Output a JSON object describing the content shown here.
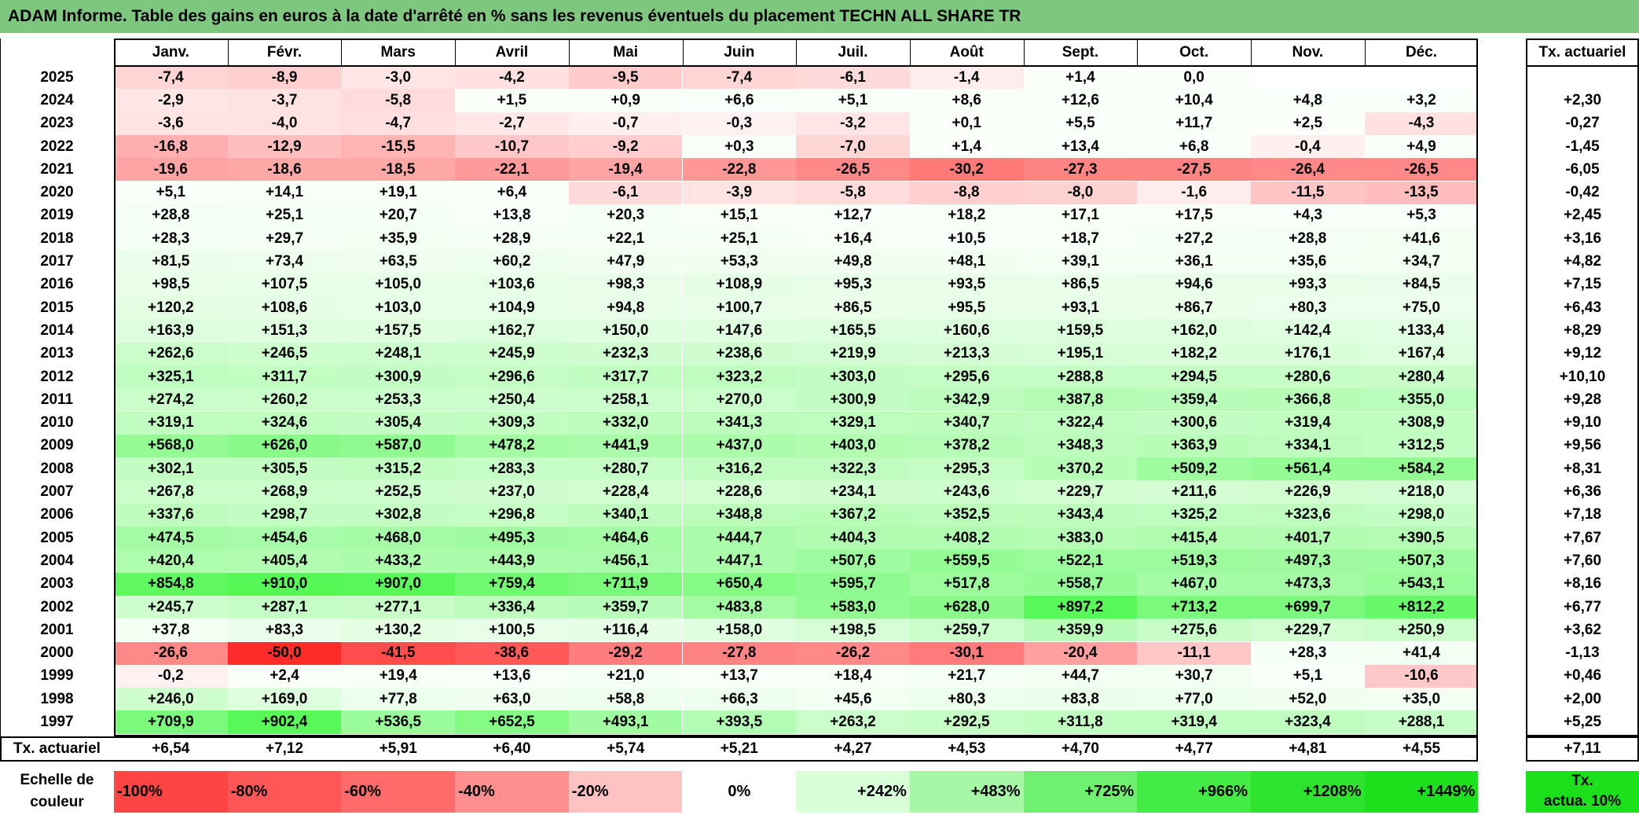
{
  "title": "ADAM Informe. Table des gains en euros à la date d'arrêté en % sans les revenus éventuels du placement TECHN ALL SHARE TR",
  "months": [
    "Janv.",
    "Févr.",
    "Mars",
    "Avril",
    "Mai",
    "Juin",
    "Juil.",
    "Août",
    "Sept.",
    "Oct.",
    "Nov.",
    "Déc."
  ],
  "rate_header": "Tx. actuariel",
  "rows": [
    {
      "year": "2025",
      "values": [
        "-7,4",
        "-8,9",
        "-3,0",
        "-4,2",
        "-9,5",
        "-7,4",
        "-6,1",
        "-1,4",
        "+1,4",
        "0,0",
        "",
        ""
      ],
      "rate": ""
    },
    {
      "year": "2024",
      "values": [
        "-2,9",
        "-3,7",
        "-5,8",
        "+1,5",
        "+0,9",
        "+6,6",
        "+5,1",
        "+8,6",
        "+12,6",
        "+10,4",
        "+4,8",
        "+3,2"
      ],
      "rate": "+2,30"
    },
    {
      "year": "2023",
      "values": [
        "-3,6",
        "-4,0",
        "-4,7",
        "-2,7",
        "-0,7",
        "-0,3",
        "-3,2",
        "+0,1",
        "+5,5",
        "+11,7",
        "+2,5",
        "-4,3"
      ],
      "rate": "-0,27"
    },
    {
      "year": "2022",
      "values": [
        "-16,8",
        "-12,9",
        "-15,5",
        "-10,7",
        "-9,2",
        "+0,3",
        "-7,0",
        "+1,4",
        "+13,4",
        "+6,8",
        "-0,4",
        "+4,9"
      ],
      "rate": "-1,45"
    },
    {
      "year": "2021",
      "values": [
        "-19,6",
        "-18,6",
        "-18,5",
        "-22,1",
        "-19,4",
        "-22,8",
        "-26,5",
        "-30,2",
        "-27,3",
        "-27,5",
        "-26,4",
        "-26,5"
      ],
      "rate": "-6,05"
    },
    {
      "year": "2020",
      "values": [
        "+5,1",
        "+14,1",
        "+19,1",
        "+6,4",
        "-6,1",
        "-3,9",
        "-5,8",
        "-8,8",
        "-8,0",
        "-1,6",
        "-11,5",
        "-13,5"
      ],
      "rate": "-0,42"
    },
    {
      "year": "2019",
      "values": [
        "+28,8",
        "+25,1",
        "+20,7",
        "+13,8",
        "+20,3",
        "+15,1",
        "+12,7",
        "+18,2",
        "+17,1",
        "+17,5",
        "+4,3",
        "+5,3"
      ],
      "rate": "+2,45"
    },
    {
      "year": "2018",
      "values": [
        "+28,3",
        "+29,7",
        "+35,9",
        "+28,9",
        "+22,1",
        "+25,1",
        "+16,4",
        "+10,5",
        "+18,7",
        "+27,2",
        "+28,8",
        "+41,6"
      ],
      "rate": "+3,16"
    },
    {
      "year": "2017",
      "values": [
        "+81,5",
        "+73,4",
        "+63,5",
        "+60,2",
        "+47,9",
        "+53,3",
        "+49,8",
        "+48,1",
        "+39,1",
        "+36,1",
        "+35,6",
        "+34,7"
      ],
      "rate": "+4,82"
    },
    {
      "year": "2016",
      "values": [
        "+98,5",
        "+107,5",
        "+105,0",
        "+103,6",
        "+98,3",
        "+108,9",
        "+95,3",
        "+93,5",
        "+86,5",
        "+94,6",
        "+93,3",
        "+84,5"
      ],
      "rate": "+7,15"
    },
    {
      "year": "2015",
      "values": [
        "+120,2",
        "+108,6",
        "+103,0",
        "+104,9",
        "+94,8",
        "+100,7",
        "+86,5",
        "+95,5",
        "+93,1",
        "+86,7",
        "+80,3",
        "+75,0"
      ],
      "rate": "+6,43"
    },
    {
      "year": "2014",
      "values": [
        "+163,9",
        "+151,3",
        "+157,5",
        "+162,7",
        "+150,0",
        "+147,6",
        "+165,5",
        "+160,6",
        "+159,5",
        "+162,0",
        "+142,4",
        "+133,4"
      ],
      "rate": "+8,29"
    },
    {
      "year": "2013",
      "values": [
        "+262,6",
        "+246,5",
        "+248,1",
        "+245,9",
        "+232,3",
        "+238,6",
        "+219,9",
        "+213,3",
        "+195,1",
        "+182,2",
        "+176,1",
        "+167,4"
      ],
      "rate": "+9,12"
    },
    {
      "year": "2012",
      "values": [
        "+325,1",
        "+311,7",
        "+300,9",
        "+296,6",
        "+317,7",
        "+323,2",
        "+303,0",
        "+295,6",
        "+288,8",
        "+294,5",
        "+280,6",
        "+280,4"
      ],
      "rate": "+10,10"
    },
    {
      "year": "2011",
      "values": [
        "+274,2",
        "+260,2",
        "+253,3",
        "+250,4",
        "+258,1",
        "+270,0",
        "+300,9",
        "+342,9",
        "+387,8",
        "+359,4",
        "+366,8",
        "+355,0"
      ],
      "rate": "+9,28"
    },
    {
      "year": "2010",
      "values": [
        "+319,1",
        "+324,6",
        "+305,4",
        "+309,3",
        "+332,0",
        "+341,3",
        "+329,1",
        "+340,7",
        "+322,4",
        "+300,6",
        "+319,4",
        "+308,9"
      ],
      "rate": "+9,10"
    },
    {
      "year": "2009",
      "values": [
        "+568,0",
        "+626,0",
        "+587,0",
        "+478,2",
        "+441,9",
        "+437,0",
        "+403,0",
        "+378,2",
        "+348,3",
        "+363,9",
        "+334,1",
        "+312,5"
      ],
      "rate": "+9,56"
    },
    {
      "year": "2008",
      "values": [
        "+302,1",
        "+305,5",
        "+315,2",
        "+283,3",
        "+280,7",
        "+316,2",
        "+322,3",
        "+295,3",
        "+370,2",
        "+509,2",
        "+561,4",
        "+584,2"
      ],
      "rate": "+8,31"
    },
    {
      "year": "2007",
      "values": [
        "+267,8",
        "+268,9",
        "+252,5",
        "+237,0",
        "+228,4",
        "+228,6",
        "+234,1",
        "+243,6",
        "+229,7",
        "+211,6",
        "+226,9",
        "+218,0"
      ],
      "rate": "+6,36"
    },
    {
      "year": "2006",
      "values": [
        "+337,6",
        "+298,7",
        "+302,8",
        "+296,8",
        "+340,1",
        "+348,8",
        "+367,2",
        "+352,5",
        "+343,4",
        "+325,2",
        "+323,6",
        "+298,0"
      ],
      "rate": "+7,18"
    },
    {
      "year": "2005",
      "values": [
        "+474,5",
        "+454,6",
        "+468,0",
        "+495,3",
        "+464,6",
        "+444,7",
        "+404,3",
        "+408,2",
        "+383,0",
        "+415,4",
        "+401,7",
        "+390,5"
      ],
      "rate": "+7,67"
    },
    {
      "year": "2004",
      "values": [
        "+420,4",
        "+405,4",
        "+433,2",
        "+443,9",
        "+456,1",
        "+447,1",
        "+507,6",
        "+559,5",
        "+522,1",
        "+519,3",
        "+497,3",
        "+507,3"
      ],
      "rate": "+7,60"
    },
    {
      "year": "2003",
      "values": [
        "+854,8",
        "+910,0",
        "+907,0",
        "+759,4",
        "+711,9",
        "+650,4",
        "+595,7",
        "+517,8",
        "+558,7",
        "+467,0",
        "+473,3",
        "+543,1"
      ],
      "rate": "+8,16"
    },
    {
      "year": "2002",
      "values": [
        "+245,7",
        "+287,1",
        "+277,1",
        "+336,4",
        "+359,7",
        "+483,8",
        "+583,0",
        "+628,0",
        "+897,2",
        "+713,2",
        "+699,7",
        "+812,2"
      ],
      "rate": "+6,77"
    },
    {
      "year": "2001",
      "values": [
        "+37,8",
        "+83,3",
        "+130,2",
        "+100,5",
        "+116,4",
        "+158,0",
        "+198,5",
        "+259,7",
        "+359,9",
        "+275,6",
        "+229,7",
        "+250,9"
      ],
      "rate": "+3,62"
    },
    {
      "year": "2000",
      "values": [
        "-26,6",
        "-50,0",
        "-41,5",
        "-38,6",
        "-29,2",
        "-27,8",
        "-26,2",
        "-30,1",
        "-20,4",
        "-11,1",
        "+28,3",
        "+41,4"
      ],
      "rate": "-1,13"
    },
    {
      "year": "1999",
      "values": [
        "-0,2",
        "+2,4",
        "+19,4",
        "+13,6",
        "+21,0",
        "+13,7",
        "+18,4",
        "+21,7",
        "+44,7",
        "+30,7",
        "+5,1",
        "-10,6"
      ],
      "rate": "+0,46"
    },
    {
      "year": "1998",
      "values": [
        "+246,0",
        "+169,0",
        "+77,8",
        "+63,0",
        "+58,8",
        "+66,3",
        "+45,6",
        "+80,3",
        "+83,8",
        "+77,0",
        "+52,0",
        "+35,0"
      ],
      "rate": "+2,00"
    },
    {
      "year": "1997",
      "values": [
        "+709,9",
        "+902,4",
        "+536,5",
        "+652,5",
        "+493,1",
        "+393,5",
        "+263,2",
        "+292,5",
        "+311,8",
        "+319,4",
        "+323,4",
        "+288,1"
      ],
      "rate": "+5,25"
    }
  ],
  "footer": {
    "label": "Tx. actuariel",
    "values": [
      "+6,54",
      "+7,12",
      "+5,91",
      "+6,40",
      "+5,74",
      "+5,21",
      "+4,27",
      "+4,53",
      "+4,70",
      "+4,77",
      "+4,81",
      "+4,55"
    ],
    "rate": "+7,11"
  },
  "scale": {
    "label_line1": "Echelle de",
    "label_line2": "couleur",
    "items": [
      {
        "text": "-100%",
        "color": "#ff4444"
      },
      {
        "text": "-80%",
        "color": "#ff5757"
      },
      {
        "text": "-60%",
        "color": "#ff6a6a"
      },
      {
        "text": "-40%",
        "color": "#ff8f8f"
      },
      {
        "text": "-20%",
        "color": "#ffc2c2"
      },
      {
        "text": "0%",
        "color": "#ffffff"
      },
      {
        "text": "+242%",
        "color": "#d9ffd9"
      },
      {
        "text": "+483%",
        "color": "#a6f7a6"
      },
      {
        "text": "+725%",
        "color": "#6ff06f"
      },
      {
        "text": "+966%",
        "color": "#44eb44"
      },
      {
        "text": "+1208%",
        "color": "#2ee32e"
      },
      {
        "text": "+1449%",
        "color": "#1be01b"
      }
    ],
    "rate_line1": "Tx.",
    "rate_line2": "actua. 10%",
    "rate_color": "#1be01b"
  },
  "colors": {
    "title_bg": "#7ec77e"
  }
}
